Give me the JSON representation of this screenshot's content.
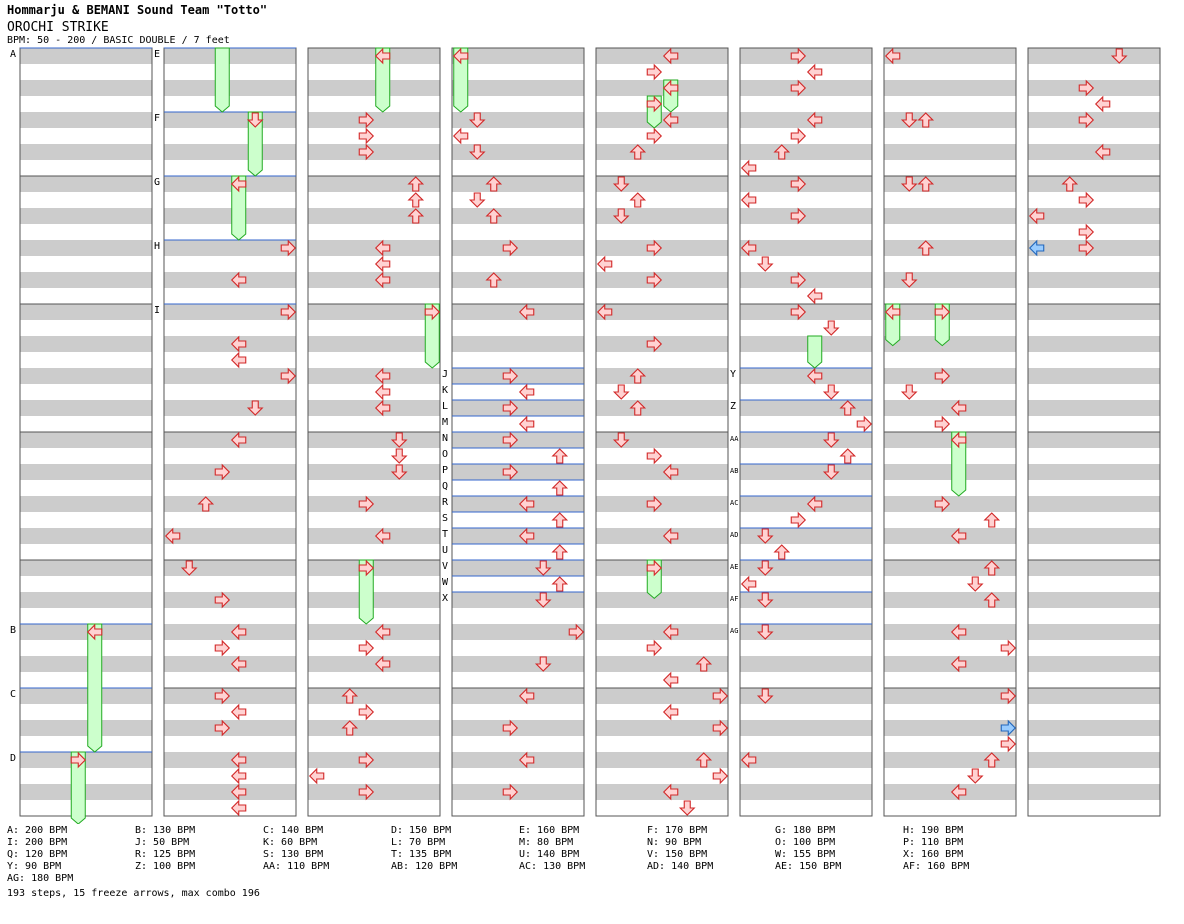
{
  "header": {
    "artist": "Hommarju & BEMANI Sound Team \"Totto\"",
    "song": "OROCHI STRIKE",
    "info": "BPM: 50 - 200 / BASIC DOUBLE / 7 feet"
  },
  "colors": {
    "band_gray": "#cccccc",
    "border": "#555555",
    "bpm_line": "#3366cc",
    "arrow_fill": "#ffd2d2",
    "arrow_stroke": "#d22828",
    "freeze_fill": "#ccffcc",
    "freeze_stroke": "#22aa22",
    "shock_fill": "#99ccff",
    "shock_stroke": "#2266bb"
  },
  "chart_data": {
    "type": "stepchart",
    "columns": 8,
    "measures_per_column": 6,
    "bpm_markers": [
      {
        "label": "A",
        "col": 0,
        "beat": 0
      },
      {
        "label": "B",
        "col": 0,
        "beat": 18
      },
      {
        "label": "C",
        "col": 0,
        "beat": 20
      },
      {
        "label": "D",
        "col": 0,
        "beat": 22
      },
      {
        "label": "E",
        "col": 1,
        "beat": 0
      },
      {
        "label": "F",
        "col": 1,
        "beat": 2
      },
      {
        "label": "G",
        "col": 1,
        "beat": 4
      },
      {
        "label": "H",
        "col": 1,
        "beat": 6
      },
      {
        "label": "I",
        "col": 1,
        "beat": 8
      },
      {
        "label": "J",
        "col": 3,
        "beat": 10
      },
      {
        "label": "K",
        "col": 3,
        "beat": 10.5
      },
      {
        "label": "L",
        "col": 3,
        "beat": 11
      },
      {
        "label": "M",
        "col": 3,
        "beat": 11.5
      },
      {
        "label": "N",
        "col": 3,
        "beat": 12
      },
      {
        "label": "O",
        "col": 3,
        "beat": 12.5
      },
      {
        "label": "P",
        "col": 3,
        "beat": 13
      },
      {
        "label": "Q",
        "col": 3,
        "beat": 13.5
      },
      {
        "label": "R",
        "col": 3,
        "beat": 14
      },
      {
        "label": "S",
        "col": 3,
        "beat": 14.5
      },
      {
        "label": "T",
        "col": 3,
        "beat": 15
      },
      {
        "label": "U",
        "col": 3,
        "beat": 15.5
      },
      {
        "label": "V",
        "col": 3,
        "beat": 16
      },
      {
        "label": "W",
        "col": 3,
        "beat": 16.5
      },
      {
        "label": "X",
        "col": 3,
        "beat": 17
      },
      {
        "label": "Y",
        "col": 5,
        "beat": 10
      },
      {
        "label": "Z",
        "col": 5,
        "beat": 11
      },
      {
        "label": "AA",
        "col": 5,
        "beat": 12
      },
      {
        "label": "AB",
        "col": 5,
        "beat": 13
      },
      {
        "label": "AC",
        "col": 5,
        "beat": 14
      },
      {
        "label": "AD",
        "col": 5,
        "beat": 15
      },
      {
        "label": "AE",
        "col": 5,
        "beat": 16
      },
      {
        "label": "AF",
        "col": 5,
        "beat": 17
      },
      {
        "label": "AG",
        "col": 5,
        "beat": 18
      }
    ],
    "freezes": [
      {
        "col": 0,
        "lane": 4,
        "start": 18,
        "end": 22
      },
      {
        "col": 0,
        "lane": 3,
        "start": 22,
        "end": 24.3
      },
      {
        "col": 1,
        "lane": 3,
        "start": 0,
        "end": 2
      },
      {
        "col": 1,
        "lane": 5,
        "start": 2,
        "end": 4
      },
      {
        "col": 1,
        "lane": 4,
        "start": 4,
        "end": 6
      },
      {
        "col": 2,
        "lane": 4,
        "start": 0,
        "end": 2
      },
      {
        "col": 2,
        "lane": 7,
        "start": 8,
        "end": 10
      },
      {
        "col": 2,
        "lane": 3,
        "start": 16,
        "end": 18
      },
      {
        "col": 3,
        "lane": 0,
        "start": 0,
        "end": 2
      },
      {
        "col": 4,
        "lane": 4,
        "start": 1,
        "end": 2
      },
      {
        "col": 4,
        "lane": 3,
        "start": 1.5,
        "end": 2.5
      },
      {
        "col": 4,
        "lane": 3,
        "start": 16,
        "end": 17.2
      },
      {
        "col": 5,
        "lane": 4,
        "start": 9,
        "end": 10
      },
      {
        "col": 6,
        "lane": 0,
        "start": 8,
        "end": 9.3
      },
      {
        "col": 6,
        "lane": 3,
        "start": 8,
        "end": 9.3
      },
      {
        "col": 6,
        "lane": 4,
        "start": 12,
        "end": 14
      }
    ],
    "arrows": [
      {
        "col": 0,
        "lane": 4,
        "beat": 18
      },
      {
        "col": 0,
        "lane": 3,
        "beat": 22
      },
      {
        "col": 1,
        "lane": 5,
        "beat": 2
      },
      {
        "col": 1,
        "lane": 4,
        "beat": 4
      },
      {
        "col": 1,
        "lane": 7,
        "beat": 6
      },
      {
        "col": 1,
        "lane": 4,
        "beat": 7
      },
      {
        "col": 1,
        "lane": 7,
        "beat": 8
      },
      {
        "col": 1,
        "lane": 4,
        "beat": 9
      },
      {
        "col": 1,
        "lane": 4,
        "beat": 9.5
      },
      {
        "col": 1,
        "lane": 7,
        "beat": 10
      },
      {
        "col": 1,
        "lane": 5,
        "beat": 11
      },
      {
        "col": 1,
        "lane": 4,
        "beat": 12
      },
      {
        "col": 1,
        "lane": 3,
        "beat": 13
      },
      {
        "col": 1,
        "lane": 2,
        "beat": 14
      },
      {
        "col": 1,
        "lane": 0,
        "beat": 15
      },
      {
        "col": 1,
        "lane": 1,
        "beat": 16
      },
      {
        "col": 1,
        "lane": 3,
        "beat": 17
      },
      {
        "col": 1,
        "lane": 4,
        "beat": 18
      },
      {
        "col": 1,
        "lane": 3,
        "beat": 18.5
      },
      {
        "col": 1,
        "lane": 4,
        "beat": 19
      },
      {
        "col": 1,
        "lane": 3,
        "beat": 20
      },
      {
        "col": 1,
        "lane": 4,
        "beat": 20.5
      },
      {
        "col": 1,
        "lane": 3,
        "beat": 21
      },
      {
        "col": 1,
        "lane": 4,
        "beat": 22
      },
      {
        "col": 1,
        "lane": 4,
        "beat": 22.5
      },
      {
        "col": 1,
        "lane": 4,
        "beat": 23
      },
      {
        "col": 1,
        "lane": 4,
        "beat": 23.5
      },
      {
        "col": 2,
        "lane": 4,
        "beat": 0
      },
      {
        "col": 2,
        "lane": 3,
        "beat": 2
      },
      {
        "col": 2,
        "lane": 3,
        "beat": 2.5
      },
      {
        "col": 2,
        "lane": 3,
        "beat": 3
      },
      {
        "col": 2,
        "lane": 6,
        "beat": 4
      },
      {
        "col": 2,
        "lane": 6,
        "beat": 4.5
      },
      {
        "col": 2,
        "lane": 6,
        "beat": 5
      },
      {
        "col": 2,
        "lane": 4,
        "beat": 6
      },
      {
        "col": 2,
        "lane": 4,
        "beat": 6.5
      },
      {
        "col": 2,
        "lane": 4,
        "beat": 7
      },
      {
        "col": 2,
        "lane": 7,
        "beat": 8
      },
      {
        "col": 2,
        "lane": 4,
        "beat": 10
      },
      {
        "col": 2,
        "lane": 4,
        "beat": 10.5
      },
      {
        "col": 2,
        "lane": 4,
        "beat": 11
      },
      {
        "col": 2,
        "lane": 5,
        "beat": 12
      },
      {
        "col": 2,
        "lane": 5,
        "beat": 12.5
      },
      {
        "col": 2,
        "lane": 5,
        "beat": 13
      },
      {
        "col": 2,
        "lane": 3,
        "beat": 14
      },
      {
        "col": 2,
        "lane": 4,
        "beat": 15
      },
      {
        "col": 2,
        "lane": 3,
        "beat": 16
      },
      {
        "col": 2,
        "lane": 4,
        "beat": 18
      },
      {
        "col": 2,
        "lane": 3,
        "beat": 18.5
      },
      {
        "col": 2,
        "lane": 4,
        "beat": 19
      },
      {
        "col": 2,
        "lane": 2,
        "beat": 20
      },
      {
        "col": 2,
        "lane": 3,
        "beat": 20.5
      },
      {
        "col": 2,
        "lane": 2,
        "beat": 21
      },
      {
        "col": 2,
        "lane": 3,
        "beat": 22
      },
      {
        "col": 2,
        "lane": 0,
        "beat": 22.5
      },
      {
        "col": 2,
        "lane": 3,
        "beat": 23
      },
      {
        "col": 3,
        "lane": 0,
        "beat": 0
      },
      {
        "col": 3,
        "lane": 1,
        "beat": 2
      },
      {
        "col": 3,
        "lane": 0,
        "beat": 2.5
      },
      {
        "col": 3,
        "lane": 1,
        "beat": 3
      },
      {
        "col": 3,
        "lane": 2,
        "beat": 4
      },
      {
        "col": 3,
        "lane": 1,
        "beat": 4.5
      },
      {
        "col": 3,
        "lane": 2,
        "beat": 5
      },
      {
        "col": 3,
        "lane": 3,
        "beat": 6
      },
      {
        "col": 3,
        "lane": 2,
        "beat": 7
      },
      {
        "col": 3,
        "lane": 4,
        "beat": 8
      },
      {
        "col": 3,
        "lane": 3,
        "beat": 10
      },
      {
        "col": 3,
        "lane": 4,
        "beat": 10.5
      },
      {
        "col": 3,
        "lane": 3,
        "beat": 11
      },
      {
        "col": 3,
        "lane": 4,
        "beat": 11.5
      },
      {
        "col": 3,
        "lane": 3,
        "beat": 12
      },
      {
        "col": 3,
        "lane": 6,
        "beat": 12.5
      },
      {
        "col": 3,
        "lane": 3,
        "beat": 13
      },
      {
        "col": 3,
        "lane": 6,
        "beat": 13.5
      },
      {
        "col": 3,
        "lane": 4,
        "beat": 14
      },
      {
        "col": 3,
        "lane": 6,
        "beat": 14.5
      },
      {
        "col": 3,
        "lane": 4,
        "beat": 15
      },
      {
        "col": 3,
        "lane": 6,
        "beat": 15.5
      },
      {
        "col": 3,
        "lane": 5,
        "beat": 16
      },
      {
        "col": 3,
        "lane": 6,
        "beat": 16.5
      },
      {
        "col": 3,
        "lane": 5,
        "beat": 17
      },
      {
        "col": 3,
        "lane": 7,
        "beat": 18
      },
      {
        "col": 3,
        "lane": 5,
        "beat": 19
      },
      {
        "col": 3,
        "lane": 4,
        "beat": 20
      },
      {
        "col": 3,
        "lane": 3,
        "beat": 21
      },
      {
        "col": 3,
        "lane": 4,
        "beat": 22
      },
      {
        "col": 3,
        "lane": 3,
        "beat": 23
      },
      {
        "col": 4,
        "lane": 4,
        "beat": 0
      },
      {
        "col": 4,
        "lane": 3,
        "beat": 0.5
      },
      {
        "col": 4,
        "lane": 4,
        "beat": 1
      },
      {
        "col": 4,
        "lane": 3,
        "beat": 1.5
      },
      {
        "col": 4,
        "lane": 4,
        "beat": 2
      },
      {
        "col": 4,
        "lane": 3,
        "beat": 2.5
      },
      {
        "col": 4,
        "lane": 2,
        "beat": 3
      },
      {
        "col": 4,
        "lane": 1,
        "beat": 4
      },
      {
        "col": 4,
        "lane": 2,
        "beat": 4.5
      },
      {
        "col": 4,
        "lane": 1,
        "beat": 5
      },
      {
        "col": 4,
        "lane": 3,
        "beat": 6
      },
      {
        "col": 4,
        "lane": 0,
        "beat": 6.5
      },
      {
        "col": 4,
        "lane": 3,
        "beat": 7
      },
      {
        "col": 4,
        "lane": 0,
        "beat": 8
      },
      {
        "col": 4,
        "lane": 3,
        "beat": 9
      },
      {
        "col": 4,
        "lane": 2,
        "beat": 10
      },
      {
        "col": 4,
        "lane": 1,
        "beat": 10.5
      },
      {
        "col": 4,
        "lane": 2,
        "beat": 11
      },
      {
        "col": 4,
        "lane": 1,
        "beat": 12
      },
      {
        "col": 4,
        "lane": 3,
        "beat": 12.5
      },
      {
        "col": 4,
        "lane": 4,
        "beat": 13
      },
      {
        "col": 4,
        "lane": 3,
        "beat": 14
      },
      {
        "col": 4,
        "lane": 4,
        "beat": 15
      },
      {
        "col": 4,
        "lane": 3,
        "beat": 16
      },
      {
        "col": 4,
        "lane": 4,
        "beat": 18
      },
      {
        "col": 4,
        "lane": 3,
        "beat": 18.5
      },
      {
        "col": 4,
        "lane": 6,
        "beat": 19
      },
      {
        "col": 4,
        "lane": 4,
        "beat": 19.5
      },
      {
        "col": 4,
        "lane": 7,
        "beat": 20
      },
      {
        "col": 4,
        "lane": 4,
        "beat": 20.5
      },
      {
        "col": 4,
        "lane": 7,
        "beat": 21
      },
      {
        "col": 4,
        "lane": 6,
        "beat": 22
      },
      {
        "col": 4,
        "lane": 7,
        "beat": 22.5
      },
      {
        "col": 4,
        "lane": 4,
        "beat": 23
      },
      {
        "col": 4,
        "lane": 5,
        "beat": 23.5
      },
      {
        "col": 5,
        "lane": 3,
        "beat": 0
      },
      {
        "col": 5,
        "lane": 4,
        "beat": 0.5
      },
      {
        "col": 5,
        "lane": 3,
        "beat": 1
      },
      {
        "col": 5,
        "lane": 4,
        "beat": 2
      },
      {
        "col": 5,
        "lane": 3,
        "beat": 2.5
      },
      {
        "col": 5,
        "lane": 2,
        "beat": 3
      },
      {
        "col": 5,
        "lane": 0,
        "beat": 3.5
      },
      {
        "col": 5,
        "lane": 3,
        "beat": 4
      },
      {
        "col": 5,
        "lane": 0,
        "beat": 4.5
      },
      {
        "col": 5,
        "lane": 3,
        "beat": 5
      },
      {
        "col": 5,
        "lane": 0,
        "beat": 6
      },
      {
        "col": 5,
        "lane": 1,
        "beat": 6.5
      },
      {
        "col": 5,
        "lane": 3,
        "beat": 7
      },
      {
        "col": 5,
        "lane": 4,
        "beat": 7.5
      },
      {
        "col": 5,
        "lane": 3,
        "beat": 8
      },
      {
        "col": 5,
        "lane": 5,
        "beat": 8.5
      },
      {
        "col": 5,
        "lane": 4,
        "beat": 10
      },
      {
        "col": 5,
        "lane": 5,
        "beat": 10.5
      },
      {
        "col": 5,
        "lane": 6,
        "beat": 11
      },
      {
        "col": 5,
        "lane": 7,
        "beat": 11.5
      },
      {
        "col": 5,
        "lane": 5,
        "beat": 12
      },
      {
        "col": 5,
        "lane": 6,
        "beat": 12.5
      },
      {
        "col": 5,
        "lane": 5,
        "beat": 13
      },
      {
        "col": 5,
        "lane": 4,
        "beat": 14
      },
      {
        "col": 5,
        "lane": 3,
        "beat": 14.5
      },
      {
        "col": 5,
        "lane": 1,
        "beat": 15
      },
      {
        "col": 5,
        "lane": 2,
        "beat": 15.5
      },
      {
        "col": 5,
        "lane": 1,
        "beat": 16
      },
      {
        "col": 5,
        "lane": 0,
        "beat": 16.5
      },
      {
        "col": 5,
        "lane": 1,
        "beat": 17
      },
      {
        "col": 5,
        "lane": 1,
        "beat": 18
      },
      {
        "col": 5,
        "lane": 1,
        "beat": 20
      },
      {
        "col": 5,
        "lane": 0,
        "beat": 22
      },
      {
        "col": 6,
        "lane": 0,
        "beat": 0
      },
      {
        "col": 6,
        "lane": 1,
        "beat": 2
      },
      {
        "col": 6,
        "lane": 2,
        "beat": 2
      },
      {
        "col": 6,
        "lane": 1,
        "beat": 4
      },
      {
        "col": 6,
        "lane": 2,
        "beat": 4
      },
      {
        "col": 6,
        "lane": 2,
        "beat": 6
      },
      {
        "col": 6,
        "lane": 1,
        "beat": 7
      },
      {
        "col": 6,
        "lane": 0,
        "beat": 8
      },
      {
        "col": 6,
        "lane": 3,
        "beat": 8
      },
      {
        "col": 6,
        "lane": 3,
        "beat": 10
      },
      {
        "col": 6,
        "lane": 1,
        "beat": 10.5
      },
      {
        "col": 6,
        "lane": 4,
        "beat": 11
      },
      {
        "col": 6,
        "lane": 3,
        "beat": 11.5
      },
      {
        "col": 6,
        "lane": 4,
        "beat": 12
      },
      {
        "col": 6,
        "lane": 3,
        "beat": 14
      },
      {
        "col": 6,
        "lane": 6,
        "beat": 14.5
      },
      {
        "col": 6,
        "lane": 4,
        "beat": 15
      },
      {
        "col": 6,
        "lane": 6,
        "beat": 16
      },
      {
        "col": 6,
        "lane": 5,
        "beat": 16.5
      },
      {
        "col": 6,
        "lane": 6,
        "beat": 17
      },
      {
        "col": 6,
        "lane": 4,
        "beat": 18
      },
      {
        "col": 6,
        "lane": 7,
        "beat": 18.5
      },
      {
        "col": 6,
        "lane": 4,
        "beat": 19
      },
      {
        "col": 6,
        "lane": 7,
        "beat": 20
      },
      {
        "col": 6,
        "lane": 7,
        "beat": 21.5
      },
      {
        "col": 6,
        "lane": 6,
        "beat": 22
      },
      {
        "col": 6,
        "lane": 5,
        "beat": 22.5
      },
      {
        "col": 6,
        "lane": 4,
        "beat": 23
      },
      {
        "col": 7,
        "lane": 5,
        "beat": 0
      },
      {
        "col": 7,
        "lane": 3,
        "beat": 1
      },
      {
        "col": 7,
        "lane": 4,
        "beat": 1.5
      },
      {
        "col": 7,
        "lane": 3,
        "beat": 2
      },
      {
        "col": 7,
        "lane": 4,
        "beat": 3
      },
      {
        "col": 7,
        "lane": 2,
        "beat": 4
      },
      {
        "col": 7,
        "lane": 3,
        "beat": 4.5
      },
      {
        "col": 7,
        "lane": 0,
        "beat": 5
      },
      {
        "col": 7,
        "lane": 3,
        "beat": 5.5
      },
      {
        "col": 7,
        "lane": 3,
        "beat": 6
      }
    ],
    "shocks": [
      {
        "col": 7,
        "lane": 0,
        "beat": 6
      },
      {
        "col": 6,
        "lane": 7,
        "beat": 21
      }
    ],
    "bpm_changes": [
      "A: 200 BPM",
      "B: 130 BPM",
      "C: 140 BPM",
      "D: 150 BPM",
      "E: 160 BPM",
      "F: 170 BPM",
      "G: 180 BPM",
      "H: 190 BPM",
      "I: 200 BPM",
      "J: 50 BPM",
      "K: 60 BPM",
      "L: 70 BPM",
      "M: 80 BPM",
      "N: 90 BPM",
      "O: 100 BPM",
      "P: 110 BPM",
      "Q: 120 BPM",
      "R: 125 BPM",
      "S: 130 BPM",
      "T: 135 BPM",
      "U: 140 BPM",
      "V: 150 BPM",
      "W: 155 BPM",
      "X: 160 BPM",
      "Y: 90 BPM",
      "Z: 100 BPM",
      "AA: 110 BPM",
      "AB: 120 BPM",
      "AC: 130 BPM",
      "AD: 140 BPM",
      "AE: 150 BPM",
      "AF: 160 BPM",
      "AG: 180 BPM"
    ],
    "summary": "193 steps, 15 freeze arrows, max combo 196"
  }
}
